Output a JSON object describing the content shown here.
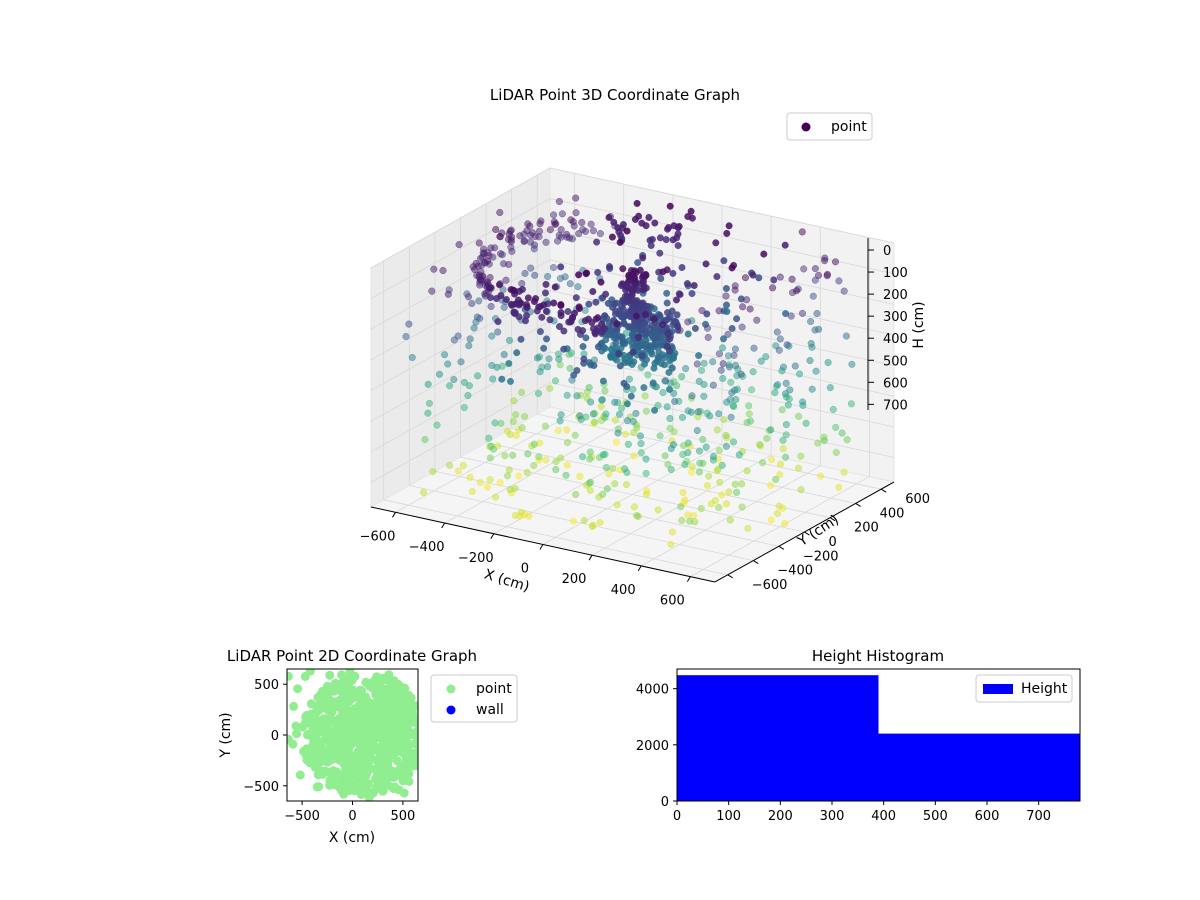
{
  "colors": {
    "point_3d_legend": "#440154",
    "point_2d": "#90ee90",
    "wall_2d": "#0000ff",
    "histogram_bar": "#0000ff",
    "pane_fill": "#f2f2f2",
    "grid": "#d8d8d8",
    "colormap": [
      "#440154",
      "#482878",
      "#3e4989",
      "#31688e",
      "#26828e",
      "#1f9e89",
      "#35b779",
      "#6ece58",
      "#b5de2b",
      "#fde725"
    ]
  },
  "chart_data": [
    {
      "type": "scatter",
      "projection": "3d",
      "title": "LiDAR Point 3D Coordinate Graph",
      "xlabel": "X (cm)",
      "ylabel": "Y (cm)",
      "zlabel": "H (cm)",
      "xticks": [
        "−600",
        "−400",
        "−200",
        "0",
        "200",
        "400",
        "600"
      ],
      "yticks": [
        "−600",
        "−400",
        "−200",
        "0",
        "200",
        "400",
        "600"
      ],
      "zticks": [
        "0",
        "100",
        "200",
        "300",
        "400",
        "500",
        "600",
        "700"
      ],
      "xlim": [
        -700,
        700
      ],
      "ylim": [
        -700,
        700
      ],
      "zlim": [
        0,
        780
      ],
      "z_axis_inverted": true,
      "color_by": "H (cm)",
      "grid": true,
      "legend": [
        "point"
      ],
      "legend_position": "top-right",
      "series": [
        {
          "name": "point",
          "components": [
            {
              "shape": "ring",
              "center": [
                0,
                0
              ],
              "radius": 560,
              "h_range": [
                30,
                110
              ],
              "count": 170
            },
            {
              "shape": "blob",
              "center": [
                50,
                -40
              ],
              "radius": 150,
              "h_range": [
                160,
                320
              ],
              "count": 260
            },
            {
              "shape": "pole",
              "center": [
                40,
                -60
              ],
              "radius": 50,
              "h_range": [
                30,
                180
              ],
              "count": 90
            },
            {
              "shape": "scatter",
              "center": [
                0,
                0
              ],
              "radius": 650,
              "h_range": [
                0,
                780
              ],
              "count": 700
            }
          ]
        }
      ]
    },
    {
      "type": "scatter",
      "title": "LiDAR Point 2D Coordinate Graph",
      "xlabel": "X (cm)",
      "ylabel": "Y (cm)",
      "xticks": [
        "−500",
        "0",
        "500"
      ],
      "yticks": [
        "−500",
        "0",
        "500"
      ],
      "xlim": [
        -650,
        650
      ],
      "ylim": [
        -650,
        650
      ],
      "legend_position": "upper-right-outside",
      "series": [
        {
          "name": "point",
          "shape": "dense-cloud",
          "center": [
            120,
            0
          ],
          "radius": 600,
          "count": 800
        },
        {
          "name": "wall",
          "count": 0
        }
      ]
    },
    {
      "type": "bar",
      "title": "Height Histogram",
      "legend": [
        "Height"
      ],
      "legend_position": "top-right",
      "xticks": [
        "0",
        "100",
        "200",
        "300",
        "400",
        "500",
        "600",
        "700"
      ],
      "yticks": [
        "0",
        "2000",
        "4000"
      ],
      "xlim": [
        0,
        780
      ],
      "ylim": [
        0,
        4700
      ],
      "bins": [
        {
          "x0": 0,
          "x1": 390,
          "count": 4480
        },
        {
          "x0": 390,
          "x1": 780,
          "count": 2400
        }
      ]
    }
  ]
}
